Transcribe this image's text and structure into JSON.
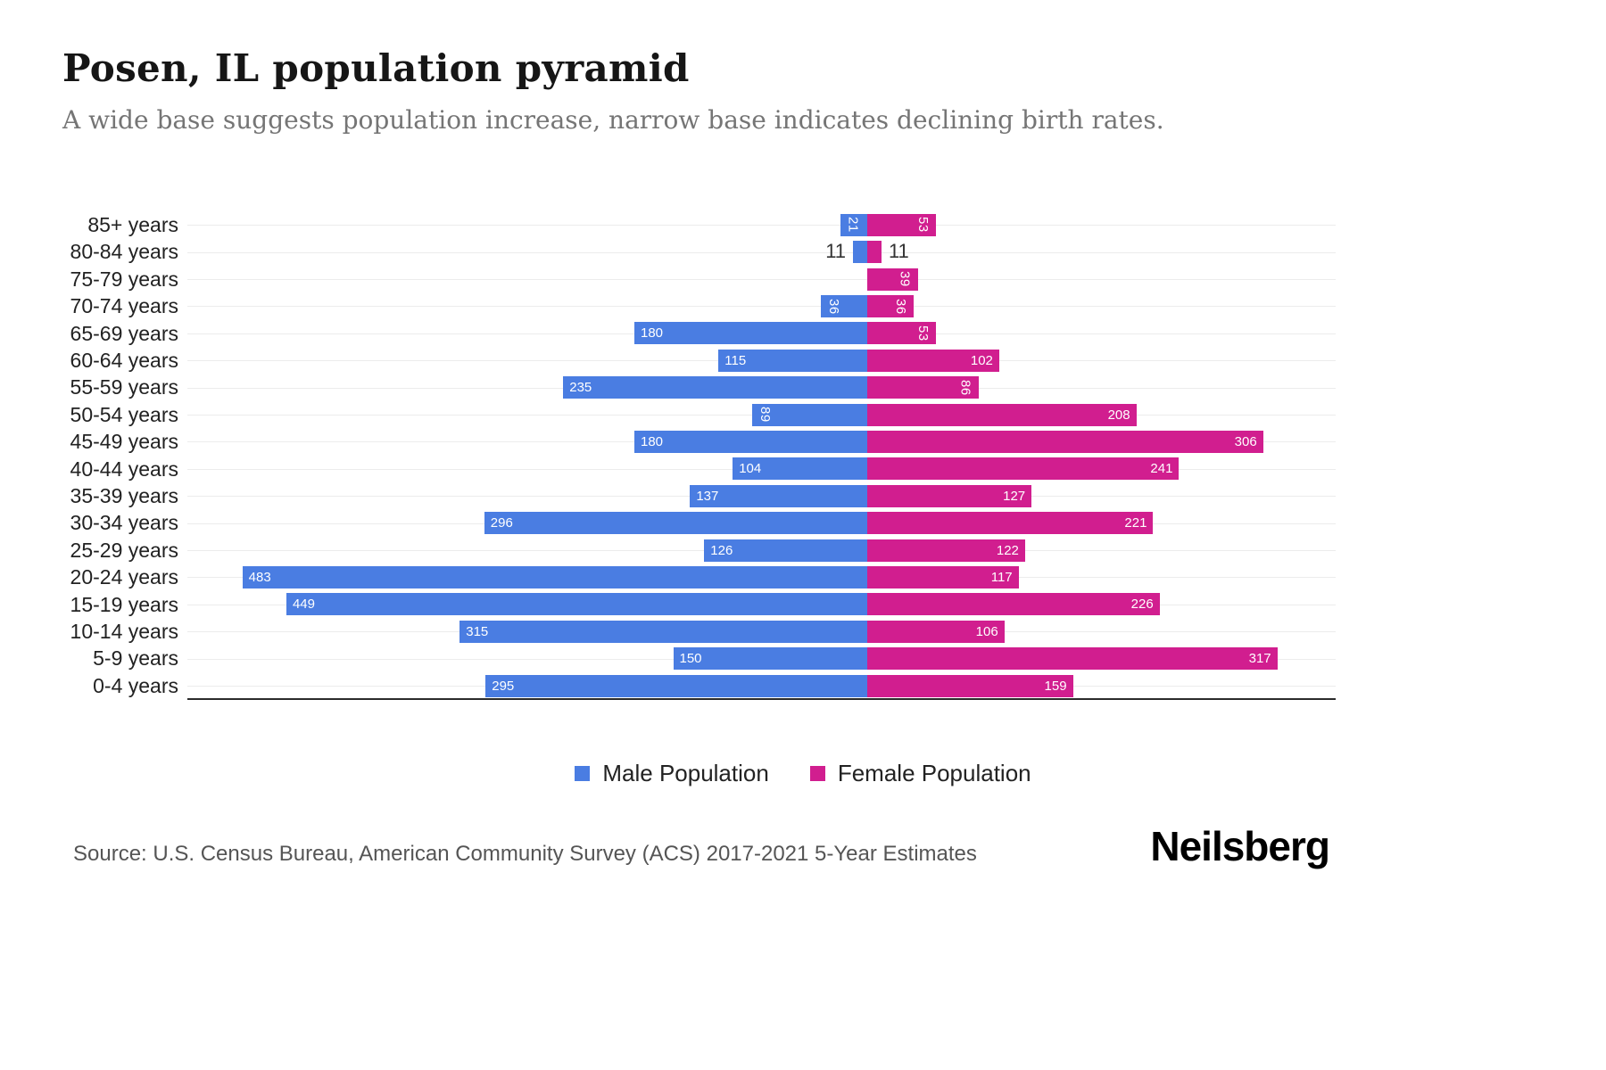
{
  "title": "Posen, IL population pyramid",
  "subtitle": "A wide base suggests population increase, narrow base indicates declining birth rates.",
  "legend": {
    "male": "Male Population",
    "female": "Female Population"
  },
  "source": "Source: U.S. Census Bureau, American Community Survey (ACS) 2017-2021 5-Year Estimates",
  "brand": "Neilsberg",
  "colors": {
    "male": "#4a7de2",
    "female": "#d11e8f",
    "label_inside": "#ffffff",
    "label_outside": "#333333"
  },
  "chart_data": {
    "type": "bar",
    "variant": "population-pyramid",
    "title": "Posen, IL population pyramid",
    "categories": [
      "85+ years",
      "80-84 years",
      "75-79 years",
      "70-74 years",
      "65-69 years",
      "60-64 years",
      "55-59 years",
      "50-54 years",
      "45-49 years",
      "40-44 years",
      "35-39 years",
      "30-34 years",
      "25-29 years",
      "20-24 years",
      "15-19 years",
      "10-14 years",
      "5-9 years",
      "0-4 years"
    ],
    "series": [
      {
        "name": "Male Population",
        "side": "left",
        "values": [
          21,
          11,
          0,
          36,
          180,
          115,
          235,
          89,
          180,
          104,
          137,
          296,
          126,
          483,
          449,
          315,
          150,
          295
        ]
      },
      {
        "name": "Female Population",
        "side": "right",
        "values": [
          53,
          11,
          39,
          36,
          53,
          102,
          86,
          208,
          306,
          241,
          127,
          221,
          122,
          117,
          226,
          106,
          317,
          159
        ]
      }
    ],
    "xlim_male": [
      0,
      525
    ],
    "xlim_female": [
      0,
      362
    ],
    "grid": "faint-horizontal",
    "legend_position": "bottom",
    "value_labels": "at-bar-ends"
  }
}
